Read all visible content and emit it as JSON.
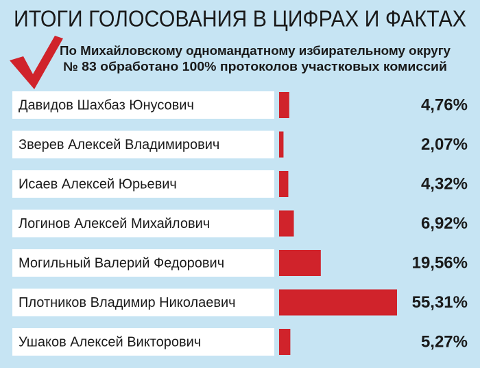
{
  "chart_data": {
    "type": "bar",
    "orientation": "horizontal",
    "title": "ИТОГИ ГОЛОСОВАНИЯ В ЦИФРАХ И ФАКТАХ",
    "subtitle": [
      "По Михайловскому одномандатному избирательному округу",
      "№ 83 обработано 100% протоколов участковых комиссий"
    ],
    "categories": [
      "Давидов Шахбаз Юнусович",
      "Зверев Алексей Владимирович",
      "Исаев Алексей Юрьевич",
      "Логинов Алексей Михайлович",
      "Могильный Валерий Федорович",
      "Плотников Владимир Николаевич",
      "Ушаков Алексей Викторович"
    ],
    "values": [
      4.76,
      2.07,
      4.32,
      6.92,
      19.56,
      55.31,
      5.27
    ],
    "value_labels": [
      "4,76%",
      "2,07%",
      "4,32%",
      "6,92%",
      "19,56%",
      "55,31%",
      "5,27%"
    ],
    "color": "#d0232b"
  }
}
